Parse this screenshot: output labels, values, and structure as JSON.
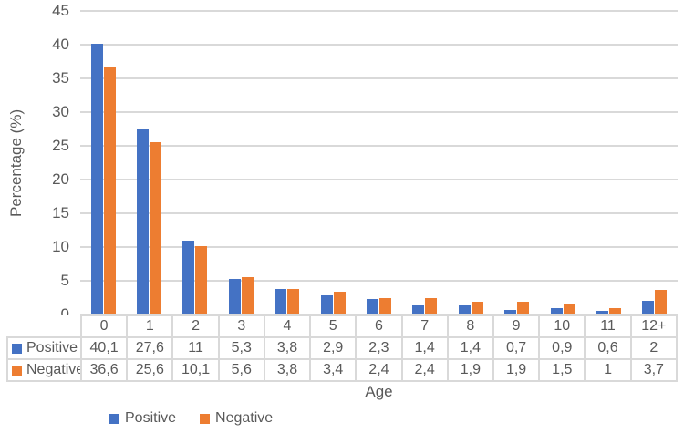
{
  "chart_data": {
    "type": "bar",
    "title": "",
    "categories": [
      "0",
      "1",
      "2",
      "3",
      "4",
      "5",
      "6",
      "7",
      "8",
      "9",
      "10",
      "11",
      "12+"
    ],
    "series": [
      {
        "name": "Positive",
        "color": "#4472C4",
        "values": [
          40.1,
          27.6,
          11,
          5.3,
          3.8,
          2.9,
          2.3,
          1.4,
          1.4,
          0.7,
          0.9,
          0.6,
          2
        ],
        "labels": [
          "40,1",
          "27,6",
          "11",
          "5,3",
          "3,8",
          "2,9",
          "2,3",
          "1,4",
          "1,4",
          "0,7",
          "0,9",
          "0,6",
          "2"
        ]
      },
      {
        "name": "Negative",
        "color": "#ED7D31",
        "values": [
          36.6,
          25.6,
          10.1,
          5.6,
          3.8,
          3.4,
          2.4,
          2.4,
          1.9,
          1.9,
          1.5,
          1,
          3.7
        ],
        "labels": [
          "36,6",
          "25,6",
          "10,1",
          "5,6",
          "3,8",
          "3,4",
          "2,4",
          "2,4",
          "1,9",
          "1,9",
          "1,5",
          "1",
          "3,7"
        ]
      }
    ],
    "xlabel": "Age",
    "ylabel": "Percentage (%)",
    "ylim": [
      0,
      45
    ],
    "yticks": [
      0,
      5,
      10,
      15,
      20,
      25,
      30,
      35,
      40,
      45
    ],
    "ytick_labels": [
      "0",
      "5",
      "10",
      "15",
      "20",
      "25",
      "30",
      "35",
      "40",
      "45"
    ],
    "grid": true,
    "legend_position": "bottom",
    "legend_entries": [
      "Positive",
      "Negative"
    ],
    "data_table_shown": true
  },
  "style": {
    "gridline_color": "#d9d9d9",
    "table_border_color": "#d9d9d9",
    "text_color": "#595959",
    "background": "#ffffff"
  }
}
